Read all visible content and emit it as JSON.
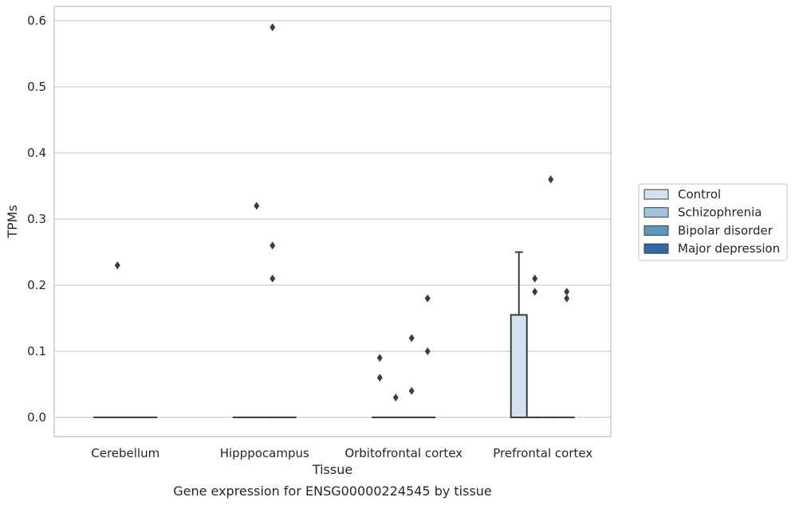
{
  "chart_data": {
    "type": "box",
    "title": "",
    "caption": "Gene expression for ENSG00000224545 by tissue",
    "xlabel": "Tissue",
    "ylabel": "TPMs",
    "ylim": [
      -0.03,
      0.62
    ],
    "yticks": [
      0.0,
      0.1,
      0.2,
      0.3,
      0.4,
      0.5,
      0.6
    ],
    "ytick_labels": [
      "0.0",
      "0.1",
      "0.2",
      "0.3",
      "0.4",
      "0.5",
      "0.6"
    ],
    "grid": "horizontal",
    "legend_position": "right",
    "categories": [
      "Cerebellum",
      "Hipppocampus",
      "Orbitofrontal cortex",
      "Prefrontal cortex"
    ],
    "series": [
      {
        "name": "Control",
        "color": "#d3e2f1",
        "boxes": [
          {
            "q1": 0.0,
            "median": 0.0,
            "q3": 0.0,
            "whislo": 0.0,
            "whishi": 0.0,
            "fliers": []
          },
          {
            "q1": 0.0,
            "median": 0.0,
            "q3": 0.0,
            "whislo": 0.0,
            "whishi": 0.0,
            "fliers": []
          },
          {
            "q1": 0.0,
            "median": 0.0,
            "q3": 0.0,
            "whislo": 0.0,
            "whishi": 0.0,
            "fliers": [
              0.09,
              0.06
            ]
          },
          {
            "q1": 0.0,
            "median": 0.0,
            "q3": 0.155,
            "whislo": 0.0,
            "whishi": 0.25,
            "fliers": []
          }
        ]
      },
      {
        "name": "Schizophrenia",
        "color": "#9fc5dd",
        "boxes": [
          {
            "q1": 0.0,
            "median": 0.0,
            "q3": 0.0,
            "whislo": 0.0,
            "whishi": 0.0,
            "fliers": [
              0.23
            ]
          },
          {
            "q1": 0.0,
            "median": 0.0,
            "q3": 0.0,
            "whislo": 0.0,
            "whishi": 0.0,
            "fliers": [
              0.32
            ]
          },
          {
            "q1": 0.0,
            "median": 0.0,
            "q3": 0.0,
            "whislo": 0.0,
            "whishi": 0.0,
            "fliers": [
              0.03
            ]
          },
          {
            "q1": 0.0,
            "median": 0.0,
            "q3": 0.0,
            "whislo": 0.0,
            "whishi": 0.0,
            "fliers": [
              0.21,
              0.19
            ]
          }
        ]
      },
      {
        "name": "Bipolar disorder",
        "color": "#5a97c1",
        "boxes": [
          {
            "q1": 0.0,
            "median": 0.0,
            "q3": 0.0,
            "whislo": 0.0,
            "whishi": 0.0,
            "fliers": []
          },
          {
            "q1": 0.0,
            "median": 0.0,
            "q3": 0.0,
            "whislo": 0.0,
            "whishi": 0.0,
            "fliers": [
              0.59,
              0.26,
              0.21
            ]
          },
          {
            "q1": 0.0,
            "median": 0.0,
            "q3": 0.0,
            "whislo": 0.0,
            "whishi": 0.0,
            "fliers": [
              0.12,
              0.04
            ]
          },
          {
            "q1": 0.0,
            "median": 0.0,
            "q3": 0.0,
            "whislo": 0.0,
            "whishi": 0.0,
            "fliers": [
              0.36
            ]
          }
        ]
      },
      {
        "name": "Major depression",
        "color": "#2c6aa8",
        "boxes": [
          {
            "q1": 0.0,
            "median": 0.0,
            "q3": 0.0,
            "whislo": 0.0,
            "whishi": 0.0,
            "fliers": []
          },
          {
            "q1": 0.0,
            "median": 0.0,
            "q3": 0.0,
            "whislo": 0.0,
            "whishi": 0.0,
            "fliers": []
          },
          {
            "q1": 0.0,
            "median": 0.0,
            "q3": 0.0,
            "whislo": 0.0,
            "whishi": 0.0,
            "fliers": [
              0.18,
              0.1
            ]
          },
          {
            "q1": 0.0,
            "median": 0.0,
            "q3": 0.0,
            "whislo": 0.0,
            "whishi": 0.0,
            "fliers": [
              0.19,
              0.18
            ]
          }
        ]
      }
    ]
  }
}
